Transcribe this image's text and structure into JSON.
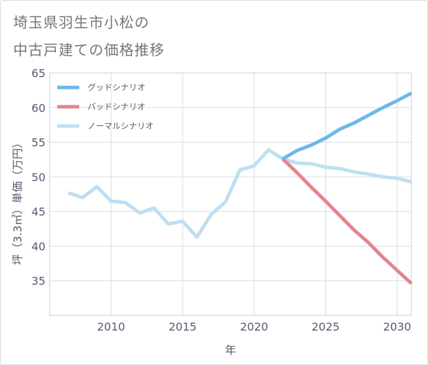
{
  "title_line1": "埼玉県羽生市小松の",
  "title_line2": "中古戸建ての価格推移",
  "chart_data": {
    "type": "line",
    "title": "埼玉県羽生市小松の中古戸建ての価格推移",
    "xlabel": "年",
    "ylabel": "坪（3.3㎡）単価（万円）",
    "xlim": [
      2005.7,
      2031
    ],
    "ylim": [
      30,
      65
    ],
    "xticks": [
      2010,
      2015,
      2020,
      2025,
      2030
    ],
    "yticks": [
      35,
      40,
      45,
      50,
      55,
      60,
      65
    ],
    "grid": true,
    "legend_position": "top-left",
    "series": [
      {
        "name": "グッドシナリオ",
        "color": "#6cb8ea",
        "x": [
          2022,
          2023,
          2024,
          2025,
          2026,
          2027,
          2028,
          2029,
          2030,
          2031
        ],
        "values": [
          52.6,
          53.8,
          54.6,
          55.6,
          56.9,
          57.8,
          58.9,
          60.0,
          61.0,
          62.1
        ]
      },
      {
        "name": "バッドシナリオ",
        "color": "#e0868c",
        "x": [
          2022,
          2023,
          2024,
          2025,
          2026,
          2027,
          2028,
          2029,
          2030,
          2031
        ],
        "values": [
          52.6,
          50.6,
          48.5,
          46.5,
          44.4,
          42.3,
          40.5,
          38.4,
          36.5,
          34.6
        ]
      },
      {
        "name": "ノーマルシナリオ",
        "color": "#bedff0",
        "x": [
          2007,
          2008,
          2009,
          2010,
          2011,
          2012,
          2013,
          2014,
          2015,
          2016,
          2017,
          2018,
          2019,
          2020,
          2021,
          2022,
          2023,
          2024,
          2025,
          2026,
          2027,
          2028,
          2029,
          2030,
          2031
        ],
        "values": [
          47.7,
          47.0,
          48.6,
          46.5,
          46.3,
          44.8,
          45.5,
          43.2,
          43.6,
          41.3,
          44.6,
          46.4,
          51.0,
          51.6,
          53.9,
          52.6,
          52.0,
          51.9,
          51.4,
          51.2,
          50.7,
          50.4,
          50.0,
          49.8,
          49.3
        ]
      }
    ]
  }
}
